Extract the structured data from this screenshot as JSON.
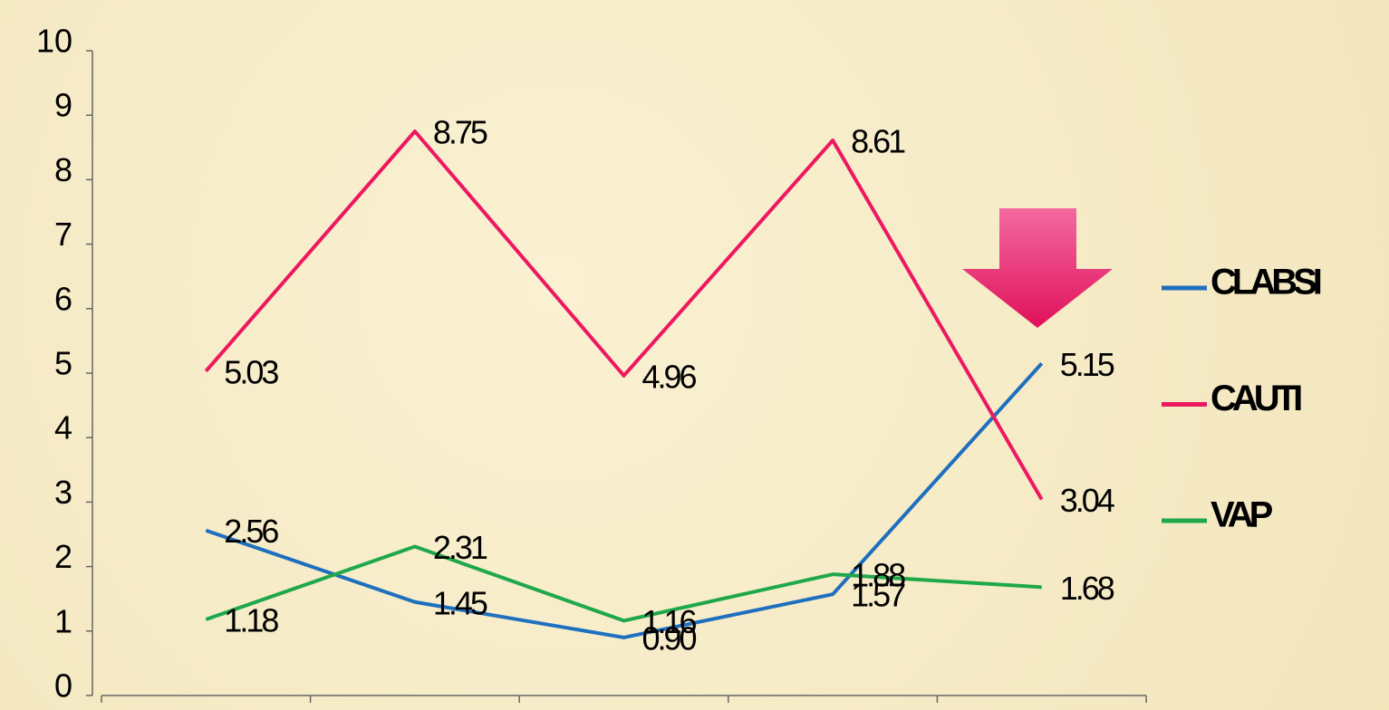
{
  "chart_data": {
    "type": "line",
    "categories": [
      null,
      null,
      null,
      null,
      null
    ],
    "series": [
      {
        "name": "CLABSI",
        "color": "#1f6fbf",
        "values": [
          2.56,
          1.45,
          0.9,
          1.57,
          5.15
        ],
        "value_labels": [
          "2.56",
          "1.45",
          "0.90",
          "1.57",
          "5.15"
        ]
      },
      {
        "name": "CAUTI",
        "color": "#ee1860",
        "values": [
          5.03,
          8.75,
          4.96,
          8.61,
          3.04
        ]
      },
      {
        "name": "VAP",
        "color": "#1ea84a",
        "values": [
          1.18,
          2.31,
          1.16,
          1.88,
          1.68
        ]
      }
    ],
    "ylim": [
      0,
      10
    ],
    "yticks": [
      0,
      1,
      2,
      3,
      4,
      5,
      6,
      7,
      8,
      9,
      10
    ],
    "legend": "right"
  }
}
